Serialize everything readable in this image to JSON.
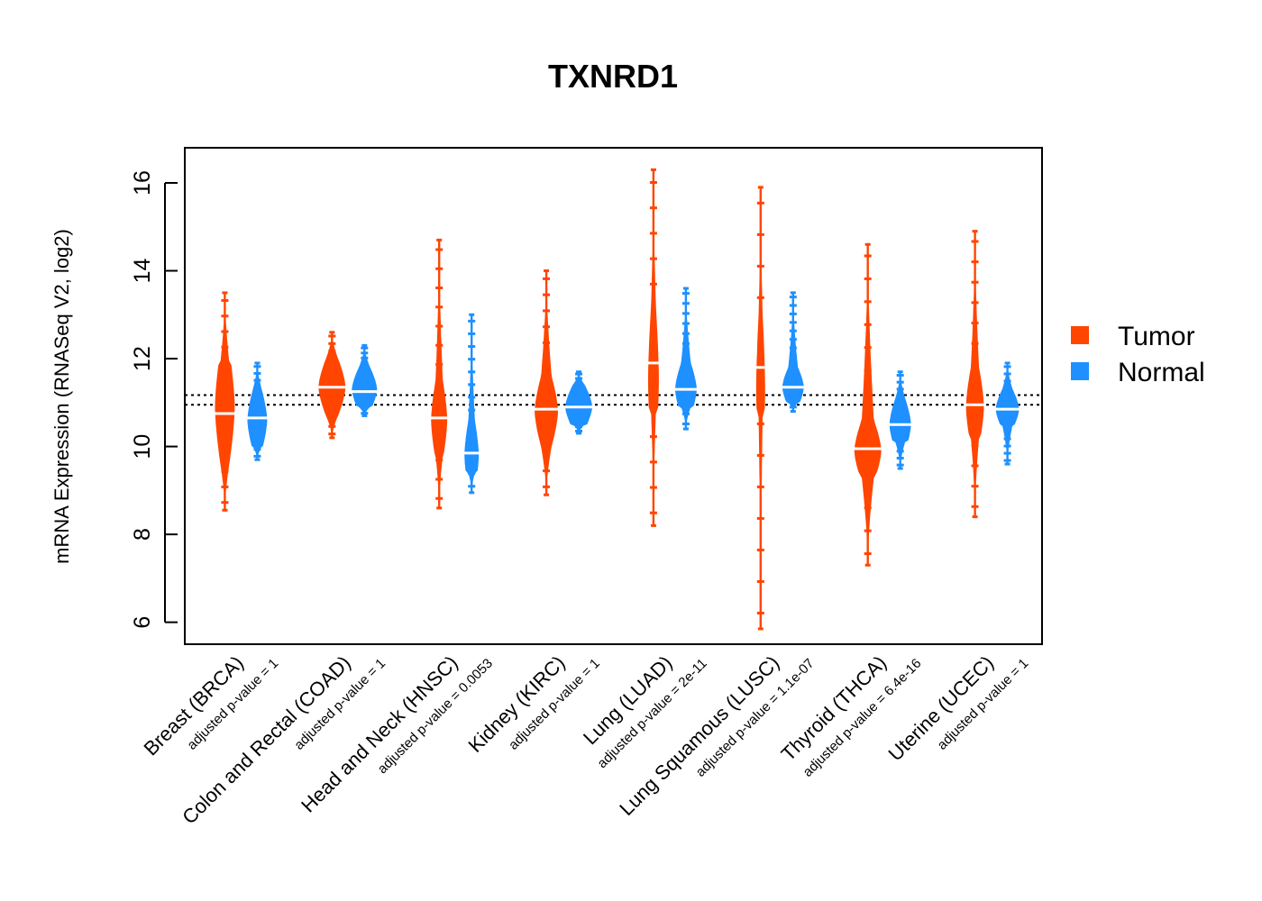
{
  "chart_data": {
    "type": "beanplot",
    "title": "TXNRD1",
    "ylabel": "mRNA Expression (RNASeq V2, log2)",
    "xlabel": "",
    "ylim": [
      5.5,
      16.8
    ],
    "yticks": [
      6,
      8,
      10,
      12,
      14,
      16
    ],
    "reference_lines": [
      10.95,
      11.17
    ],
    "grid": false,
    "legend_position": "right",
    "series": [
      {
        "name": "Tumor",
        "color": "#FF4500"
      },
      {
        "name": "Normal",
        "color": "#1E90FF"
      }
    ],
    "categories": [
      {
        "label": "Breast (BRCA)",
        "pvalue_label": "adjusted p-value = 1",
        "tumor": {
          "median": 10.75,
          "q_low": 9.6,
          "q_high": 11.9,
          "max_half_width": 11,
          "mode": 10.9,
          "min": 8.55,
          "max": 13.5
        },
        "normal": {
          "median": 10.65,
          "q_low": 10.0,
          "q_high": 11.3,
          "max_half_width": 11,
          "mode": 10.6,
          "min": 9.7,
          "max": 11.9
        }
      },
      {
        "label": "Colon and Rectal (COAD)",
        "pvalue_label": "adjusted p-value = 1",
        "tumor": {
          "median": 11.35,
          "q_low": 10.7,
          "q_high": 12.0,
          "max_half_width": 15,
          "mode": 11.35,
          "min": 10.2,
          "max": 12.6
        },
        "normal": {
          "median": 11.25,
          "q_low": 10.9,
          "q_high": 11.8,
          "max_half_width": 14,
          "mode": 11.3,
          "min": 10.7,
          "max": 12.3
        }
      },
      {
        "label": "Head and Neck (HNSC)",
        "pvalue_label": "adjusted p-value = 0.0053",
        "tumor": {
          "median": 10.65,
          "q_low": 9.8,
          "q_high": 11.5,
          "max_half_width": 9,
          "mode": 10.6,
          "min": 8.6,
          "max": 14.7
        },
        "normal": {
          "median": 9.85,
          "q_low": 9.4,
          "q_high": 10.6,
          "max_half_width": 8,
          "mode": 9.8,
          "min": 8.95,
          "max": 13.0
        }
      },
      {
        "label": "Kidney (KIRC)",
        "pvalue_label": "adjusted p-value = 1",
        "tumor": {
          "median": 10.85,
          "q_low": 10.0,
          "q_high": 11.6,
          "max_half_width": 13,
          "mode": 10.8,
          "min": 8.9,
          "max": 14.0
        },
        "normal": {
          "median": 10.9,
          "q_low": 10.5,
          "q_high": 11.4,
          "max_half_width": 15,
          "mode": 10.9,
          "min": 10.3,
          "max": 11.7
        }
      },
      {
        "label": "Lung (LUAD)",
        "pvalue_label": "adjusted p-value = 2e-11",
        "tumor": {
          "median": 11.9,
          "q_low": 10.8,
          "q_high": 13.2,
          "max_half_width": 6,
          "mode": 11.5,
          "min": 8.2,
          "max": 16.3
        },
        "normal": {
          "median": 11.3,
          "q_low": 10.9,
          "q_high": 11.9,
          "max_half_width": 12,
          "mode": 11.3,
          "min": 10.4,
          "max": 13.6
        }
      },
      {
        "label": "Lung Squamous (LUSC)",
        "pvalue_label": "adjusted p-value = 1.1e-07",
        "tumor": {
          "median": 11.8,
          "q_low": 10.7,
          "q_high": 13.0,
          "max_half_width": 5,
          "mode": 11.3,
          "min": 5.85,
          "max": 15.9
        },
        "normal": {
          "median": 11.35,
          "q_low": 11.0,
          "q_high": 11.8,
          "max_half_width": 12,
          "mode": 11.35,
          "min": 10.8,
          "max": 13.5
        }
      },
      {
        "label": "Thyroid (THCA)",
        "pvalue_label": "adjusted p-value = 6.4e-16",
        "tumor": {
          "median": 9.95,
          "q_low": 9.3,
          "q_high": 10.6,
          "max_half_width": 15,
          "mode": 9.9,
          "min": 7.3,
          "max": 14.6
        },
        "normal": {
          "median": 10.5,
          "q_low": 10.1,
          "q_high": 11.1,
          "max_half_width": 12,
          "mode": 10.5,
          "min": 9.5,
          "max": 11.7
        }
      },
      {
        "label": "Uterine (UCEC)",
        "pvalue_label": "adjusted p-value = 1",
        "tumor": {
          "median": 10.95,
          "q_low": 10.2,
          "q_high": 11.8,
          "max_half_width": 10,
          "mode": 10.9,
          "min": 8.4,
          "max": 14.9
        },
        "normal": {
          "median": 10.85,
          "q_low": 10.5,
          "q_high": 11.3,
          "max_half_width": 13,
          "mode": 10.85,
          "min": 9.6,
          "max": 11.9
        }
      }
    ]
  }
}
